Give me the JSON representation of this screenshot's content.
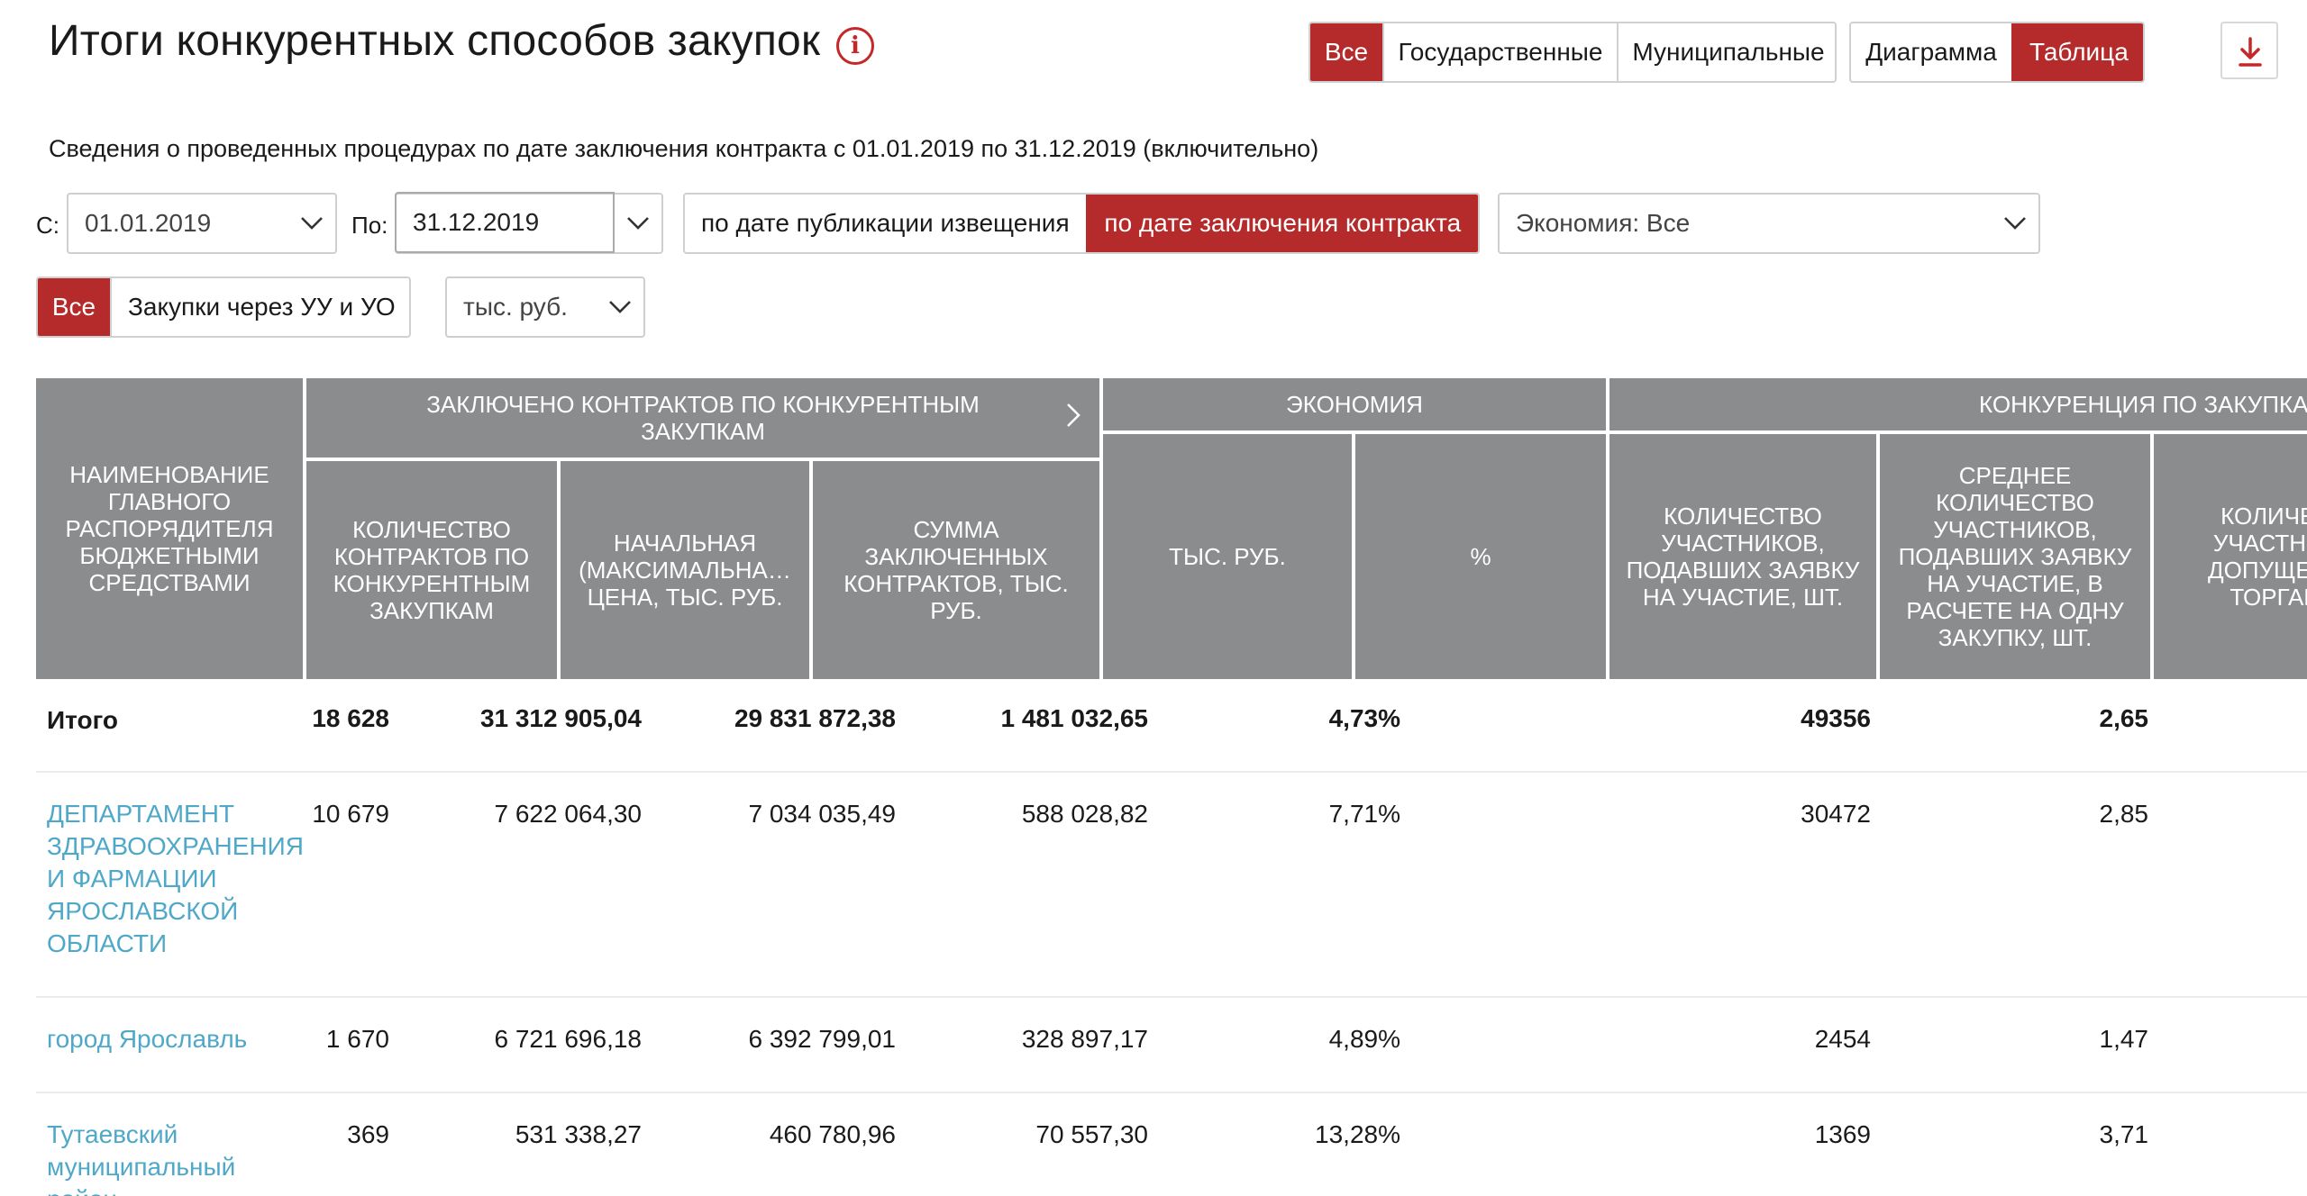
{
  "header": {
    "title": "Итоги конкурентных способов закупок",
    "info_icon": "info-icon",
    "level_filter": [
      "Все",
      "Государственные",
      "Муниципальные"
    ],
    "view_toggle": [
      "Диаграмма",
      "Таблица"
    ],
    "download_icon": "download-icon"
  },
  "subtitle": "Сведения о проведенных процедурах по дате заключения контракта с 01.01.2019 по 31.12.2019 (включительно)",
  "filters": {
    "from_label": "С:",
    "from_value": "01.01.2019",
    "to_label": "По:",
    "to_value": "31.12.2019",
    "date_mode": [
      "по дате публикации извещения",
      "по дате заключения контракта"
    ],
    "economy": "Экономия: Все",
    "purchase_type": [
      "Все",
      "Закупки через УУ и УО"
    ],
    "units": "тыс. руб."
  },
  "table": {
    "headers": {
      "name": "Наименование главного распорядителя бюджетными средствами",
      "contracts_group": "Заключено контрактов по конкурентным закупкам",
      "contracts_count": "Количество контрактов по конкурентным закупкам",
      "initial_price": "Начальная (максимальна…\nцена, тыс. руб.",
      "contracts_sum": "Сумма заключенных контрактов, тыс. руб.",
      "economy_group": "Экономия",
      "economy_rub": "тыс. руб.",
      "economy_pct": "%",
      "competition_group": "Конкуренция по закупкам",
      "participants": "Количество участников, подавших заявку на участие, шт.",
      "avg_participants": "Среднее количество участников, подавших заявку на участие, в расчете на одну закупку, шт.",
      "admitted": "Количе…\nучастни…\nдопущен…\nторгам,"
    },
    "total": {
      "name": "Итого",
      "values": [
        "18 628",
        "31 312 905,04",
        "29 831 872,38",
        "1 481 032,65",
        "4,73%",
        "49356",
        "2,65"
      ]
    },
    "rows": [
      {
        "name": "ДЕПАРТАМЕНТ ЗДРАВООХРАНЕНИЯ И ФАРМАЦИИ ЯРОСЛАВСКОЙ ОБЛАСТИ",
        "values": [
          "10 679",
          "7 622 064,30",
          "7 034 035,49",
          "588 028,82",
          "7,71%",
          "30472",
          "2,85"
        ]
      },
      {
        "name": "город Ярославль",
        "values": [
          "1 670",
          "6 721 696,18",
          "6 392 799,01",
          "328 897,17",
          "4,89%",
          "2454",
          "1,47"
        ]
      },
      {
        "name": "Тутаевский муниципальный район",
        "values": [
          "369",
          "531 338,27",
          "460 780,96",
          "70 557,30",
          "13,28%",
          "1369",
          "3,71"
        ]
      }
    ]
  },
  "colors": {
    "accent": "#b52a2a",
    "header_bg": "#8a8c8e",
    "link": "#4fa8c8"
  }
}
